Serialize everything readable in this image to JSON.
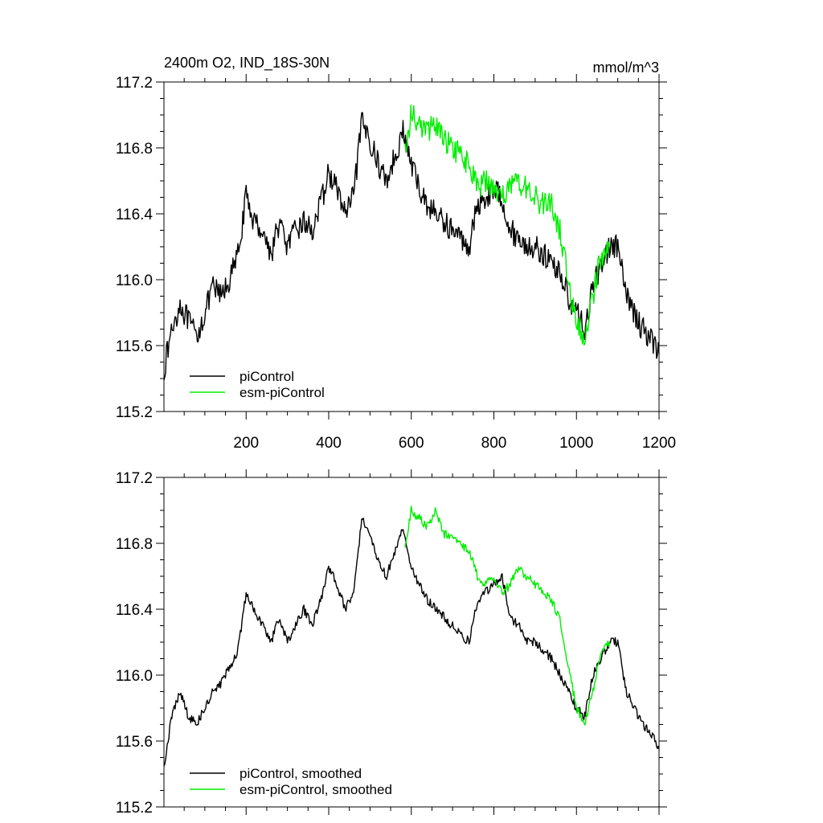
{
  "chart_data": [
    {
      "type": "line",
      "title": "2400m O2, IND_18S-30N",
      "units": "mmol/m^3",
      "xlim": [
        1,
        1200
      ],
      "ylim": [
        115.2,
        117.2
      ],
      "xticks": [
        200,
        400,
        600,
        800,
        1000,
        1200
      ],
      "xtick_labels": [
        "200",
        "400",
        "600",
        "800",
        "1000",
        "1200"
      ],
      "yticks": [
        115.2,
        115.6,
        116.0,
        116.4,
        116.8,
        117.2
      ],
      "ytick_labels": [
        "115.2",
        "115.6",
        "116.0",
        "116.4",
        "116.8",
        "117.2"
      ],
      "legend_position": "bottom-left",
      "series": [
        {
          "name": "piControl",
          "color": "#000000",
          "x": [
            1,
            20,
            40,
            60,
            80,
            100,
            120,
            140,
            160,
            180,
            200,
            220,
            240,
            260,
            280,
            300,
            320,
            340,
            360,
            380,
            400,
            420,
            440,
            460,
            480,
            500,
            520,
            540,
            560,
            580,
            600,
            620,
            640,
            660,
            680,
            700,
            720,
            740,
            760,
            780,
            800,
            820,
            840,
            860,
            880,
            900,
            920,
            940,
            960,
            980,
            1000,
            1020,
            1040,
            1060,
            1080,
            1100,
            1120,
            1140,
            1160,
            1180,
            1200
          ],
          "values": [
            115.45,
            115.7,
            115.85,
            115.75,
            115.65,
            115.8,
            115.95,
            115.9,
            116.0,
            116.15,
            116.5,
            116.35,
            116.3,
            116.15,
            116.35,
            116.2,
            116.3,
            116.35,
            116.3,
            116.45,
            116.65,
            116.55,
            116.4,
            116.5,
            116.95,
            116.85,
            116.7,
            116.6,
            116.75,
            116.9,
            116.7,
            116.55,
            116.45,
            116.4,
            116.35,
            116.3,
            116.25,
            116.2,
            116.45,
            116.5,
            116.55,
            116.5,
            116.3,
            116.25,
            116.2,
            116.2,
            116.15,
            116.1,
            116.05,
            115.9,
            115.8,
            115.7,
            115.95,
            116.1,
            116.2,
            116.2,
            115.9,
            115.8,
            115.7,
            115.65,
            115.55
          ]
        },
        {
          "name": "esm-piControl",
          "color": "#00ee00",
          "x": [
            585,
            600,
            620,
            640,
            660,
            680,
            700,
            720,
            740,
            760,
            780,
            800,
            820,
            840,
            860,
            880,
            900,
            920,
            940,
            960,
            980,
            1000,
            1020,
            1040,
            1060,
            1080
          ],
          "values": [
            116.8,
            117.0,
            116.95,
            116.9,
            116.95,
            116.85,
            116.8,
            116.75,
            116.7,
            116.55,
            116.6,
            116.55,
            116.5,
            116.55,
            116.6,
            116.55,
            116.5,
            116.45,
            116.45,
            116.3,
            116.0,
            115.75,
            115.65,
            115.9,
            116.15,
            116.2
          ]
        }
      ]
    },
    {
      "type": "line",
      "xlim": [
        1,
        1200
      ],
      "ylim": [
        115.2,
        117.2
      ],
      "xticks": [
        200,
        400,
        600,
        800,
        1000,
        1200
      ],
      "yticks": [
        115.2,
        115.6,
        116.0,
        116.4,
        116.8,
        117.2
      ],
      "ytick_labels": [
        "115.2",
        "115.6",
        "116.0",
        "116.4",
        "116.8",
        "117.2"
      ],
      "legend_position": "bottom-left",
      "series": [
        {
          "name": "piControl, smoothed",
          "color": "#000000",
          "x": [
            1,
            20,
            40,
            60,
            80,
            100,
            120,
            140,
            160,
            180,
            200,
            220,
            240,
            260,
            280,
            300,
            320,
            340,
            360,
            380,
            400,
            420,
            440,
            460,
            480,
            500,
            520,
            540,
            560,
            580,
            600,
            620,
            640,
            660,
            680,
            700,
            720,
            740,
            760,
            780,
            800,
            820,
            840,
            860,
            880,
            900,
            920,
            940,
            960,
            980,
            1000,
            1020,
            1040,
            1060,
            1080,
            1100,
            1120,
            1140,
            1160,
            1180,
            1200
          ],
          "values": [
            115.45,
            115.75,
            115.9,
            115.75,
            115.7,
            115.8,
            115.9,
            115.95,
            116.05,
            116.15,
            116.5,
            116.4,
            116.3,
            116.2,
            116.35,
            116.2,
            116.3,
            116.4,
            116.3,
            116.45,
            116.65,
            116.55,
            116.4,
            116.5,
            116.95,
            116.85,
            116.7,
            116.6,
            116.75,
            116.9,
            116.65,
            116.55,
            116.45,
            116.4,
            116.35,
            116.3,
            116.25,
            116.2,
            116.45,
            116.5,
            116.55,
            116.6,
            116.35,
            116.3,
            116.2,
            116.2,
            116.15,
            116.1,
            116.0,
            115.9,
            115.8,
            115.75,
            116.0,
            116.1,
            116.2,
            116.2,
            115.9,
            115.8,
            115.7,
            115.65,
            115.55
          ]
        },
        {
          "name": "esm-piControl, smoothed",
          "color": "#00ee00",
          "x": [
            585,
            600,
            620,
            640,
            660,
            680,
            700,
            720,
            740,
            760,
            780,
            800,
            820,
            840,
            860,
            880,
            900,
            920,
            940,
            960,
            980,
            1000,
            1020,
            1040,
            1060,
            1080
          ],
          "values": [
            116.8,
            117.0,
            116.95,
            116.9,
            117.0,
            116.85,
            116.85,
            116.8,
            116.75,
            116.6,
            116.55,
            116.6,
            116.5,
            116.55,
            116.65,
            116.6,
            116.55,
            116.5,
            116.45,
            116.35,
            116.05,
            115.8,
            115.7,
            115.9,
            116.15,
            116.2
          ]
        }
      ]
    }
  ]
}
